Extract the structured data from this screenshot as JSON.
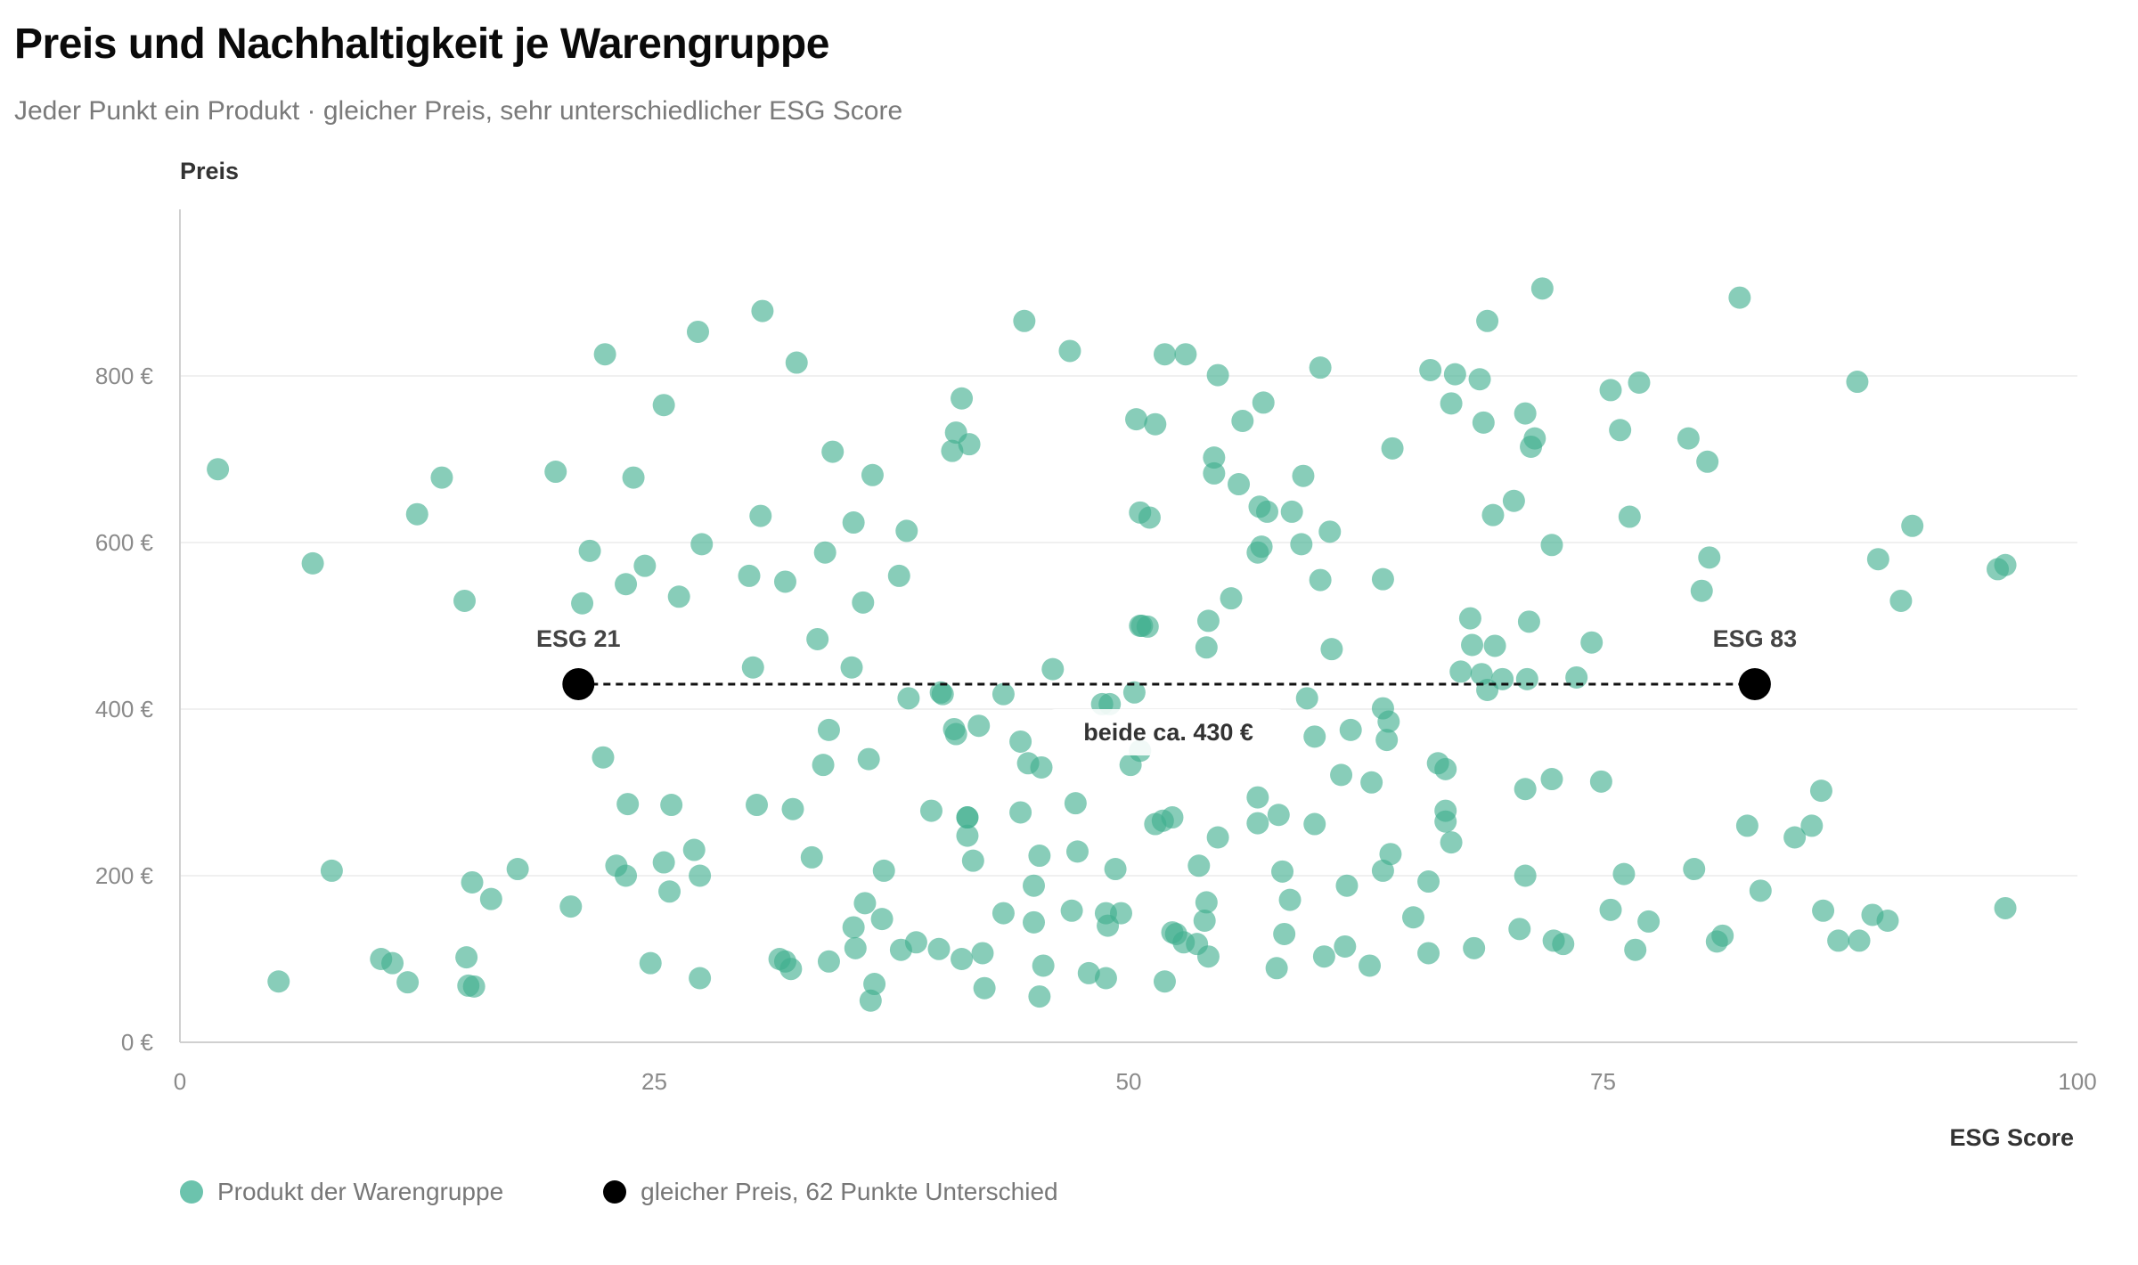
{
  "title": "Preis und Nachhaltigkeit je Warengruppe",
  "subtitle": "Jeder Punkt ein Produkt · gleicher Preis, sehr unterschiedlicher ESG Score",
  "colors": {
    "points": "#3fae8e",
    "highlight": "#000000",
    "grid": "#ececec",
    "axis": "#d0d0d0"
  },
  "legend": {
    "product": "Produkt der Warengruppe",
    "highlight": "gleicher Preis, 62 Punkte Unterschied"
  },
  "chart_data": {
    "type": "scatter",
    "title": "Preis und Nachhaltigkeit je Warengruppe",
    "subtitle": "Jeder Punkt ein Produkt · gleicher Preis, sehr unterschiedlicher ESG Score",
    "xlabel": "ESG Score",
    "ylabel": "Preis",
    "xlim": [
      0,
      100
    ],
    "ylim": [
      0,
      1000
    ],
    "x_ticks": [
      {
        "value": 0,
        "label": "0"
      },
      {
        "value": 25,
        "label": "25"
      },
      {
        "value": 50,
        "label": "50"
      },
      {
        "value": 75,
        "label": "75"
      },
      {
        "value": 100,
        "label": "100"
      }
    ],
    "y_ticks": [
      {
        "value": 0,
        "label": "0 €"
      },
      {
        "value": 200,
        "label": "200 €"
      },
      {
        "value": 400,
        "label": "400 €"
      },
      {
        "value": 600,
        "label": "600 €"
      },
      {
        "value": 800,
        "label": "800 €"
      }
    ],
    "grid": true,
    "legend_position": "bottom-left",
    "series": [
      {
        "name": "Produkt der Warengruppe",
        "color": "#3fae8e",
        "points": [
          [
            2.0,
            688
          ],
          [
            7.0,
            575
          ],
          [
            12.5,
            634
          ],
          [
            13.8,
            678
          ],
          [
            15.0,
            530
          ],
          [
            19.8,
            685
          ],
          [
            21.2,
            527
          ],
          [
            21.6,
            590
          ],
          [
            22.4,
            826
          ],
          [
            23.5,
            550
          ],
          [
            23.9,
            678
          ],
          [
            24.5,
            572
          ],
          [
            25.5,
            765
          ],
          [
            26.3,
            535
          ],
          [
            27.3,
            853
          ],
          [
            27.5,
            598
          ],
          [
            30.0,
            560
          ],
          [
            30.6,
            632
          ],
          [
            30.7,
            878
          ],
          [
            31.9,
            553
          ],
          [
            32.5,
            816
          ],
          [
            33.6,
            484
          ],
          [
            34.0,
            588
          ],
          [
            34.4,
            709
          ],
          [
            35.5,
            624
          ],
          [
            36.0,
            528
          ],
          [
            36.5,
            681
          ],
          [
            37.9,
            560
          ],
          [
            38.3,
            614
          ],
          [
            40.7,
            710
          ],
          [
            40.9,
            732
          ],
          [
            41.2,
            773
          ],
          [
            41.6,
            718
          ],
          [
            44.5,
            866
          ],
          [
            46.9,
            830
          ],
          [
            50.4,
            748
          ],
          [
            50.6,
            636
          ],
          [
            51.1,
            630
          ],
          [
            51.4,
            742
          ],
          [
            51.9,
            826
          ],
          [
            53.0,
            826
          ],
          [
            54.5,
            702
          ],
          [
            54.5,
            683
          ],
          [
            54.7,
            801
          ],
          [
            55.4,
            533
          ],
          [
            55.8,
            670
          ],
          [
            56.0,
            746
          ],
          [
            56.8,
            588
          ],
          [
            56.9,
            643
          ],
          [
            57.0,
            595
          ],
          [
            57.1,
            768
          ],
          [
            57.3,
            637
          ],
          [
            58.6,
            637
          ],
          [
            59.2,
            680
          ],
          [
            59.1,
            598
          ],
          [
            60.1,
            555
          ],
          [
            60.1,
            810
          ],
          [
            60.6,
            613
          ],
          [
            63.4,
            556
          ],
          [
            63.9,
            713
          ],
          [
            65.9,
            807
          ],
          [
            67.0,
            767
          ],
          [
            67.2,
            802
          ],
          [
            68.5,
            796
          ],
          [
            68.7,
            744
          ],
          [
            68.9,
            866
          ],
          [
            69.2,
            633
          ],
          [
            70.3,
            650
          ],
          [
            70.9,
            755
          ],
          [
            71.2,
            715
          ],
          [
            71.4,
            725
          ],
          [
            72.3,
            597
          ],
          [
            75.4,
            783
          ],
          [
            75.9,
            735
          ],
          [
            76.4,
            631
          ],
          [
            76.9,
            792
          ],
          [
            79.5,
            725
          ],
          [
            80.5,
            697
          ],
          [
            80.6,
            582
          ],
          [
            80.2,
            542
          ],
          [
            82.2,
            894
          ],
          [
            71.8,
            905
          ],
          [
            88.4,
            793
          ],
          [
            89.5,
            580
          ],
          [
            91.3,
            620
          ],
          [
            90.7,
            530
          ],
          [
            95.8,
            568
          ],
          [
            96.2,
            573
          ],
          [
            54.1,
            474
          ],
          [
            54.2,
            506
          ],
          [
            50.7,
            500
          ],
          [
            51.0,
            499
          ],
          [
            60.7,
            472
          ],
          [
            63.4,
            401
          ],
          [
            63.6,
            363
          ],
          [
            68.0,
            509
          ],
          [
            68.1,
            477
          ],
          [
            67.5,
            445
          ],
          [
            68.6,
            442
          ],
          [
            68.9,
            423
          ],
          [
            69.3,
            476
          ],
          [
            69.7,
            436
          ],
          [
            71.0,
            436
          ],
          [
            71.1,
            505
          ],
          [
            73.6,
            438
          ],
          [
            74.4,
            480
          ],
          [
            74.9,
            313
          ],
          [
            30.2,
            450
          ],
          [
            35.4,
            450
          ],
          [
            38.4,
            413
          ],
          [
            40.2,
            418
          ],
          [
            40.8,
            376
          ],
          [
            43.4,
            418
          ],
          [
            44.3,
            361
          ],
          [
            46.0,
            448
          ],
          [
            48.6,
            406
          ],
          [
            50.6,
            500
          ],
          [
            59.4,
            413
          ],
          [
            59.8,
            367
          ],
          [
            61.2,
            321
          ],
          [
            61.7,
            375
          ],
          [
            62.8,
            312
          ],
          [
            63.7,
            385
          ],
          [
            66.3,
            335
          ],
          [
            66.7,
            328
          ],
          [
            66.7,
            278
          ],
          [
            66.7,
            265
          ],
          [
            67.0,
            240
          ],
          [
            70.9,
            304
          ],
          [
            72.3,
            316
          ],
          [
            44.7,
            335
          ],
          [
            45.4,
            330
          ],
          [
            47.2,
            287
          ],
          [
            40.1,
            420
          ],
          [
            36.3,
            340
          ],
          [
            22.3,
            342
          ],
          [
            23.6,
            286
          ],
          [
            25.9,
            285
          ],
          [
            27.1,
            231
          ],
          [
            27.4,
            200
          ],
          [
            25.5,
            216
          ],
          [
            25.8,
            181
          ],
          [
            23.5,
            200
          ],
          [
            23.0,
            212
          ],
          [
            30.4,
            285
          ],
          [
            32.3,
            280
          ],
          [
            33.3,
            222
          ],
          [
            33.9,
            333
          ],
          [
            34.2,
            375
          ],
          [
            39.6,
            278
          ],
          [
            40.9,
            370
          ],
          [
            41.5,
            270
          ],
          [
            41.5,
            248
          ],
          [
            41.8,
            218
          ],
          [
            42.1,
            380
          ],
          [
            44.3,
            276
          ],
          [
            45.3,
            224
          ],
          [
            47.3,
            229
          ],
          [
            49.0,
            406
          ],
          [
            50.1,
            333
          ],
          [
            50.6,
            350
          ],
          [
            51.4,
            262
          ],
          [
            51.8,
            266
          ],
          [
            52.3,
            270
          ],
          [
            53.7,
            212
          ],
          [
            54.7,
            246
          ],
          [
            56.8,
            294
          ],
          [
            56.8,
            263
          ],
          [
            57.9,
            273
          ],
          [
            59.8,
            262
          ],
          [
            63.4,
            206
          ],
          [
            63.8,
            226
          ],
          [
            65.8,
            193
          ],
          [
            70.9,
            200
          ],
          [
            76.1,
            202
          ],
          [
            79.8,
            208
          ],
          [
            82.6,
            260
          ],
          [
            83.3,
            182
          ],
          [
            85.1,
            246
          ],
          [
            86.0,
            260
          ],
          [
            86.5,
            302
          ],
          [
            8.0,
            206
          ],
          [
            15.4,
            192
          ],
          [
            16.4,
            172
          ],
          [
            17.8,
            208
          ],
          [
            20.6,
            163
          ],
          [
            37.1,
            206
          ],
          [
            45.0,
            188
          ],
          [
            48.8,
            155
          ],
          [
            49.3,
            208
          ],
          [
            52.3,
            132
          ],
          [
            54.1,
            168
          ],
          [
            58.1,
            205
          ],
          [
            58.5,
            171
          ],
          [
            61.5,
            188
          ],
          [
            65.0,
            150
          ],
          [
            75.4,
            159
          ],
          [
            77.4,
            145
          ],
          [
            86.6,
            158
          ],
          [
            89.2,
            153
          ],
          [
            90.0,
            146
          ],
          [
            96.2,
            161
          ],
          [
            5.2,
            73
          ],
          [
            10.6,
            100
          ],
          [
            11.2,
            95
          ],
          [
            12.0,
            72
          ],
          [
            15.1,
            102
          ],
          [
            15.2,
            68
          ],
          [
            15.5,
            67
          ],
          [
            24.8,
            95
          ],
          [
            27.4,
            77
          ],
          [
            31.6,
            100
          ],
          [
            31.9,
            97
          ],
          [
            32.2,
            88
          ],
          [
            34.2,
            97
          ],
          [
            35.5,
            138
          ],
          [
            35.6,
            113
          ],
          [
            36.1,
            167
          ],
          [
            36.4,
            50
          ],
          [
            36.6,
            70
          ],
          [
            37.0,
            148
          ],
          [
            38.0,
            111
          ],
          [
            38.8,
            120
          ],
          [
            40.0,
            112
          ],
          [
            41.2,
            100
          ],
          [
            42.3,
            107
          ],
          [
            42.4,
            65
          ],
          [
            43.4,
            155
          ],
          [
            45.0,
            144
          ],
          [
            45.3,
            55
          ],
          [
            45.5,
            92
          ],
          [
            47.0,
            158
          ],
          [
            47.9,
            83
          ],
          [
            48.8,
            77
          ],
          [
            48.9,
            140
          ],
          [
            49.6,
            155
          ],
          [
            51.9,
            73
          ],
          [
            52.5,
            130
          ],
          [
            52.9,
            120
          ],
          [
            53.6,
            118
          ],
          [
            54.0,
            146
          ],
          [
            54.2,
            103
          ],
          [
            57.8,
            89
          ],
          [
            58.2,
            130
          ],
          [
            60.3,
            103
          ],
          [
            61.4,
            115
          ],
          [
            62.7,
            92
          ],
          [
            65.8,
            107
          ],
          [
            68.2,
            113
          ],
          [
            70.6,
            136
          ],
          [
            72.4,
            122
          ],
          [
            72.9,
            118
          ],
          [
            76.7,
            111
          ],
          [
            81.0,
            121
          ],
          [
            81.3,
            128
          ],
          [
            87.4,
            122
          ],
          [
            88.5,
            122
          ],
          [
            41.5,
            270
          ],
          [
            50.3,
            420
          ]
        ]
      },
      {
        "name": "gleicher Preis, 62 Punkte Unterschied",
        "color": "#000000",
        "points": [
          [
            21,
            430
          ],
          [
            83,
            430
          ]
        ],
        "labels": [
          "ESG 21",
          "ESG 83"
        ],
        "annotation": "beide ca. 430 €"
      }
    ]
  }
}
